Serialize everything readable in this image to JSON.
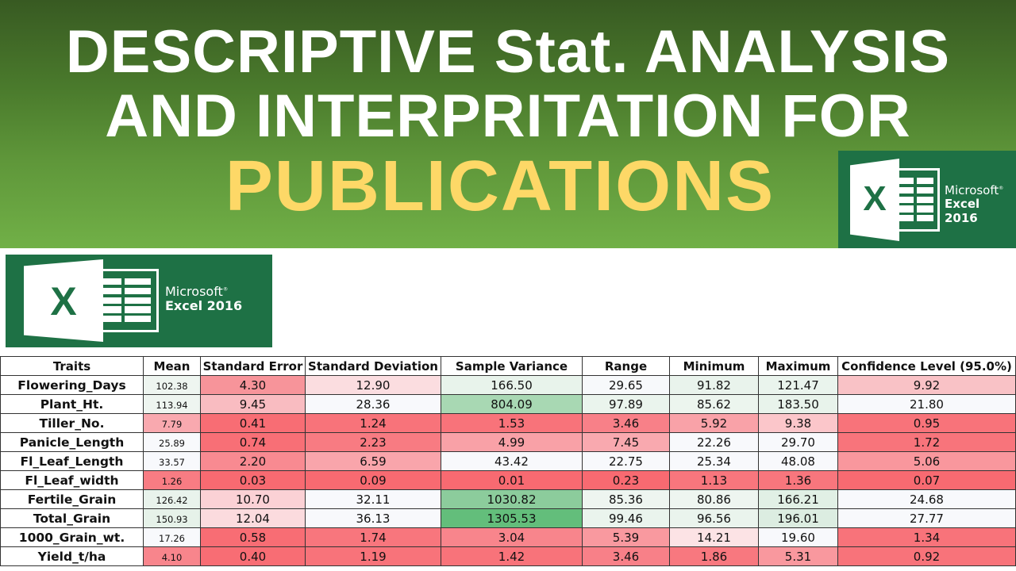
{
  "banner": {
    "line1": "DESCRIPTIVE Stat. ANALYSIS",
    "line2": "AND INTERPRITATION FOR",
    "line3": "PUBLICATIONS",
    "colors": {
      "gradient_top": "#385a22",
      "gradient_bottom": "#71b047",
      "title_white": "#ffffff",
      "title_yellow": "#fdd867"
    }
  },
  "logos": {
    "top": {
      "icon": "excel-icon",
      "brand": "Microsoft",
      "registered": "®",
      "product": "Excel 2016",
      "color": "#1e7145"
    },
    "side": {
      "icon": "excel-icon",
      "brand": "Microsoft",
      "registered": "®",
      "product": "Excel 2016",
      "color": "#1e7145"
    }
  },
  "table": {
    "headers": [
      "Traits",
      "Mean",
      "Standard Error",
      "Standard Deviation",
      "Sample Variance",
      "Range",
      "Minimum",
      "Maximum",
      "Confidence Level (95.0%)"
    ],
    "rows": [
      {
        "trait": "Flowering_Days",
        "values": [
          "102.38",
          "4.30",
          "12.90",
          "166.50",
          "29.65",
          "91.82",
          "121.47",
          "9.92"
        ],
        "colors": [
          "#eef5f0",
          "#f7949a",
          "#fbdde0",
          "#e8f3eb",
          "#f7f9fb",
          "#e9f3ec",
          "#eaf4ed",
          "#f9c2c6"
        ]
      },
      {
        "trait": "Plant_Ht.",
        "values": [
          "113.94",
          "9.45",
          "28.36",
          "804.09",
          "97.89",
          "85.62",
          "183.50",
          "21.80"
        ],
        "colors": [
          "#eef5f0",
          "#f9bcc1",
          "#f8f9fc",
          "#a8d8b3",
          "#eaf4ed",
          "#ecf5ee",
          "#e8f3eb",
          "#f8f9fc"
        ]
      },
      {
        "trait": "Tiller_No.",
        "values": [
          "7.79",
          "0.41",
          "1.24",
          "1.53",
          "3.46",
          "5.92",
          "9.38",
          "0.95"
        ],
        "colors": [
          "#f9a9af",
          "#f86d74",
          "#f8737a",
          "#f8737a",
          "#f88088",
          "#f9a2a8",
          "#fbc6ca",
          "#f8737a"
        ]
      },
      {
        "trait": "Panicle_Length",
        "values": [
          "25.89",
          "0.74",
          "2.23",
          "4.99",
          "7.45",
          "22.26",
          "29.70",
          "1.72"
        ],
        "colors": [
          "#f8f9fc",
          "#f86f76",
          "#f87b82",
          "#f9a1a7",
          "#f9a9af",
          "#f8f9fc",
          "#f8f9fc",
          "#f8747b"
        ]
      },
      {
        "trait": "Fl_Leaf_Length",
        "values": [
          "33.57",
          "2.20",
          "6.59",
          "43.42",
          "22.75",
          "25.34",
          "48.08",
          "5.06"
        ],
        "colors": [
          "#f8f9fc",
          "#f88a91",
          "#f9a5ab",
          "#f8f9fc",
          "#f8f9fc",
          "#f8f9fc",
          "#f8f9fc",
          "#f9979d"
        ]
      },
      {
        "trait": "Fl_Leaf_width",
        "values": [
          "1.26",
          "0.03",
          "0.09",
          "0.01",
          "0.23",
          "1.13",
          "1.36",
          "0.07"
        ],
        "colors": [
          "#f87c83",
          "#f86a71",
          "#f86a71",
          "#f86a71",
          "#f86a71",
          "#f8767d",
          "#f8767d",
          "#f86a71"
        ]
      },
      {
        "trait": "Fertile_Grain",
        "values": [
          "126.42",
          "10.70",
          "32.11",
          "1030.82",
          "85.36",
          "80.86",
          "166.21",
          "24.68"
        ],
        "colors": [
          "#e9f3ec",
          "#fbd1d5",
          "#f8f9fc",
          "#8ccc9c",
          "#eef5f0",
          "#eef5f0",
          "#e1f0e5",
          "#f8f9fc"
        ]
      },
      {
        "trait": "Total_Grain",
        "values": [
          "150.93",
          "12.04",
          "36.13",
          "1305.53",
          "99.46",
          "96.56",
          "196.01",
          "27.77"
        ],
        "colors": [
          "#e6f2e9",
          "#fbdbde",
          "#f8f9fc",
          "#63be7b",
          "#eaf4ed",
          "#eaf4ed",
          "#dcede1",
          "#f8f9fc"
        ]
      },
      {
        "trait": "1000_Grain_wt.",
        "values": [
          "17.26",
          "0.58",
          "1.74",
          "3.04",
          "5.39",
          "14.21",
          "19.60",
          "1.34"
        ],
        "colors": [
          "#f8f9fc",
          "#f86d74",
          "#f8767d",
          "#f8858c",
          "#f9999f",
          "#fce3e5",
          "#f8f9fc",
          "#f8737a"
        ]
      },
      {
        "trait": "Yield_t/ha",
        "values": [
          "4.10",
          "0.40",
          "1.19",
          "1.42",
          "3.46",
          "1.86",
          "5.31",
          "0.92"
        ],
        "colors": [
          "#f8858c",
          "#f86d74",
          "#f8737a",
          "#f8737a",
          "#f88088",
          "#f8787f",
          "#f9989e",
          "#f8737a"
        ]
      }
    ]
  },
  "chart_data": {
    "type": "table",
    "title": "DESCRIPTIVE Stat. ANALYSIS AND INTERPRITATION FOR PUBLICATIONS",
    "columns": [
      "Traits",
      "Mean",
      "Standard Error",
      "Standard Deviation",
      "Sample Variance",
      "Range",
      "Minimum",
      "Maximum",
      "Confidence Level (95.0%)"
    ],
    "rows": [
      [
        "Flowering_Days",
        102.38,
        4.3,
        12.9,
        166.5,
        29.65,
        91.82,
        121.47,
        9.92
      ],
      [
        "Plant_Ht.",
        113.94,
        9.45,
        28.36,
        804.09,
        97.89,
        85.62,
        183.5,
        21.8
      ],
      [
        "Tiller_No.",
        7.79,
        0.41,
        1.24,
        1.53,
        3.46,
        5.92,
        9.38,
        0.95
      ],
      [
        "Panicle_Length",
        25.89,
        0.74,
        2.23,
        4.99,
        7.45,
        22.26,
        29.7,
        1.72
      ],
      [
        "Fl_Leaf_Length",
        33.57,
        2.2,
        6.59,
        43.42,
        22.75,
        25.34,
        48.08,
        5.06
      ],
      [
        "Fl_Leaf_width",
        1.26,
        0.03,
        0.09,
        0.01,
        0.23,
        1.13,
        1.36,
        0.07
      ],
      [
        "Fertile_Grain",
        126.42,
        10.7,
        32.11,
        1030.82,
        85.36,
        80.86,
        166.21,
        24.68
      ],
      [
        "Total_Grain",
        150.93,
        12.04,
        36.13,
        1305.53,
        99.46,
        96.56,
        196.01,
        27.77
      ],
      [
        "1000_Grain_wt.",
        17.26,
        0.58,
        1.74,
        3.04,
        5.39,
        14.21,
        19.6,
        1.34
      ],
      [
        "Yield_t/ha",
        4.1,
        0.4,
        1.19,
        1.42,
        3.46,
        1.86,
        5.31,
        0.92
      ]
    ],
    "color_scale": {
      "low": "#f8696b",
      "mid": "#f8f9fc",
      "high": "#63be7b"
    }
  }
}
